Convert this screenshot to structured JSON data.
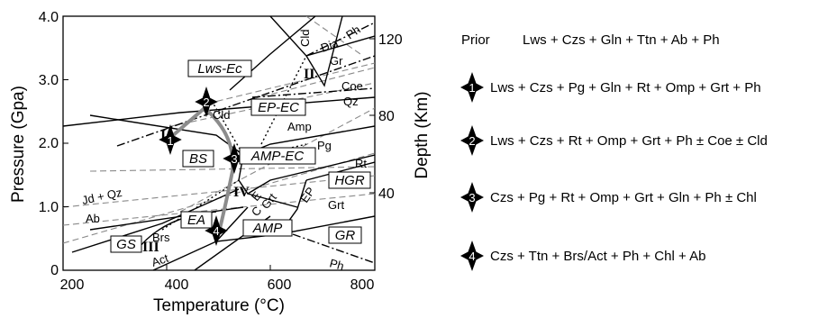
{
  "x_axis": {
    "title": "Temperature (°C)",
    "ticks": [
      "200",
      "400",
      "600",
      "800"
    ]
  },
  "y_axis": {
    "title": "Pressure (Gpa)",
    "ticks": [
      "0",
      "1.0",
      "2.0",
      "3.0",
      "4.0"
    ]
  },
  "y2_axis": {
    "title": "Depth (Km)",
    "ticks": [
      "40",
      "80",
      "120"
    ]
  },
  "facies_labels": {
    "lws_ec": "Lws-Ec",
    "ep_ec": "EP-EC",
    "bs": "BS",
    "amp_ec": "AMP-EC",
    "hgr": "HGR",
    "ea": "EA",
    "amp": "AMP",
    "gs": "GS",
    "gr": "GR"
  },
  "phase_labels": {
    "cld_top": "Cld",
    "dia": "Dia",
    "gr": "Gr",
    "ph_top": "Ph",
    "coe": "Coe",
    "qz": "Qz",
    "cld_mid": "Cld",
    "amp_line": "Amp",
    "pg": "Pg",
    "rt": "Rt",
    "jd_qz": "Jd + Qz",
    "ab": "Ab",
    "brs": "Brs",
    "act": "Act",
    "ep": "EP",
    "grt_right": "Grt",
    "grt_mid": "Grt",
    "c_small": "C",
    "e_small": "E",
    "ph_bottom": "Ph"
  },
  "roman_labels": {
    "i": "I",
    "ii": "II",
    "iii": "III",
    "iv": "IV"
  },
  "markers": [
    "1",
    "2",
    "3",
    "4"
  ],
  "legend": {
    "prior_label": "Prior",
    "prior_text": "Lws + Czs + Gln + Ttn + Ab + Ph",
    "items": [
      {
        "num": "1",
        "text": "Lws + Czs + Pg + Gln + Rt + Omp + Grt + Ph"
      },
      {
        "num": "2",
        "text": "Lws + Czs + Rt + Omp + Grt + Ph ± Coe ± Cld"
      },
      {
        "num": "3",
        "text": "Czs + Pg + Rt + Omp + Grt + Gln + Ph ± Chl"
      },
      {
        "num": "4",
        "text": "Czs + Ttn + Brs/Act + Ph + Chl + Ab"
      }
    ]
  },
  "colors": {
    "ink": "#000000",
    "dashed_gray": "#8a8a8a",
    "path_gray": "#8c8c8c",
    "marker": "#000000"
  }
}
